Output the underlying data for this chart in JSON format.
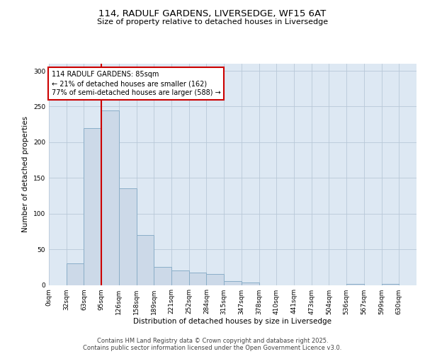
{
  "title_line1": "114, RADULF GARDENS, LIVERSEDGE, WF15 6AT",
  "title_line2": "Size of property relative to detached houses in Liversedge",
  "xlabel": "Distribution of detached houses by size in Liversedge",
  "ylabel": "Number of detached properties",
  "bin_labels": [
    "0sqm",
    "32sqm",
    "63sqm",
    "95sqm",
    "126sqm",
    "158sqm",
    "189sqm",
    "221sqm",
    "252sqm",
    "284sqm",
    "315sqm",
    "347sqm",
    "378sqm",
    "410sqm",
    "441sqm",
    "473sqm",
    "504sqm",
    "536sqm",
    "567sqm",
    "599sqm",
    "630sqm"
  ],
  "bar_heights": [
    0,
    30,
    220,
    245,
    135,
    70,
    25,
    20,
    17,
    15,
    5,
    3,
    0,
    0,
    0,
    0,
    0,
    1,
    0,
    1,
    0
  ],
  "bar_color": "#ccd9e8",
  "bar_edge_color": "#8aaec8",
  "bar_edge_width": 0.7,
  "grid_color": "#b8c8d8",
  "bg_color": "#dde8f3",
  "vline_x": 3.0,
  "vline_color": "#cc0000",
  "annotation_text": "114 RADULF GARDENS: 85sqm\n← 21% of detached houses are smaller (162)\n77% of semi-detached houses are larger (588) →",
  "annotation_box_color": "#cc0000",
  "ylim": [
    0,
    310
  ],
  "yticks": [
    0,
    50,
    100,
    150,
    200,
    250,
    300
  ],
  "footer_text": "Contains HM Land Registry data © Crown copyright and database right 2025.\nContains public sector information licensed under the Open Government Licence v3.0.",
  "title_fontsize": 9.5,
  "subtitle_fontsize": 8,
  "axis_label_fontsize": 7.5,
  "tick_fontsize": 6.5,
  "annotation_fontsize": 7,
  "footer_fontsize": 6
}
